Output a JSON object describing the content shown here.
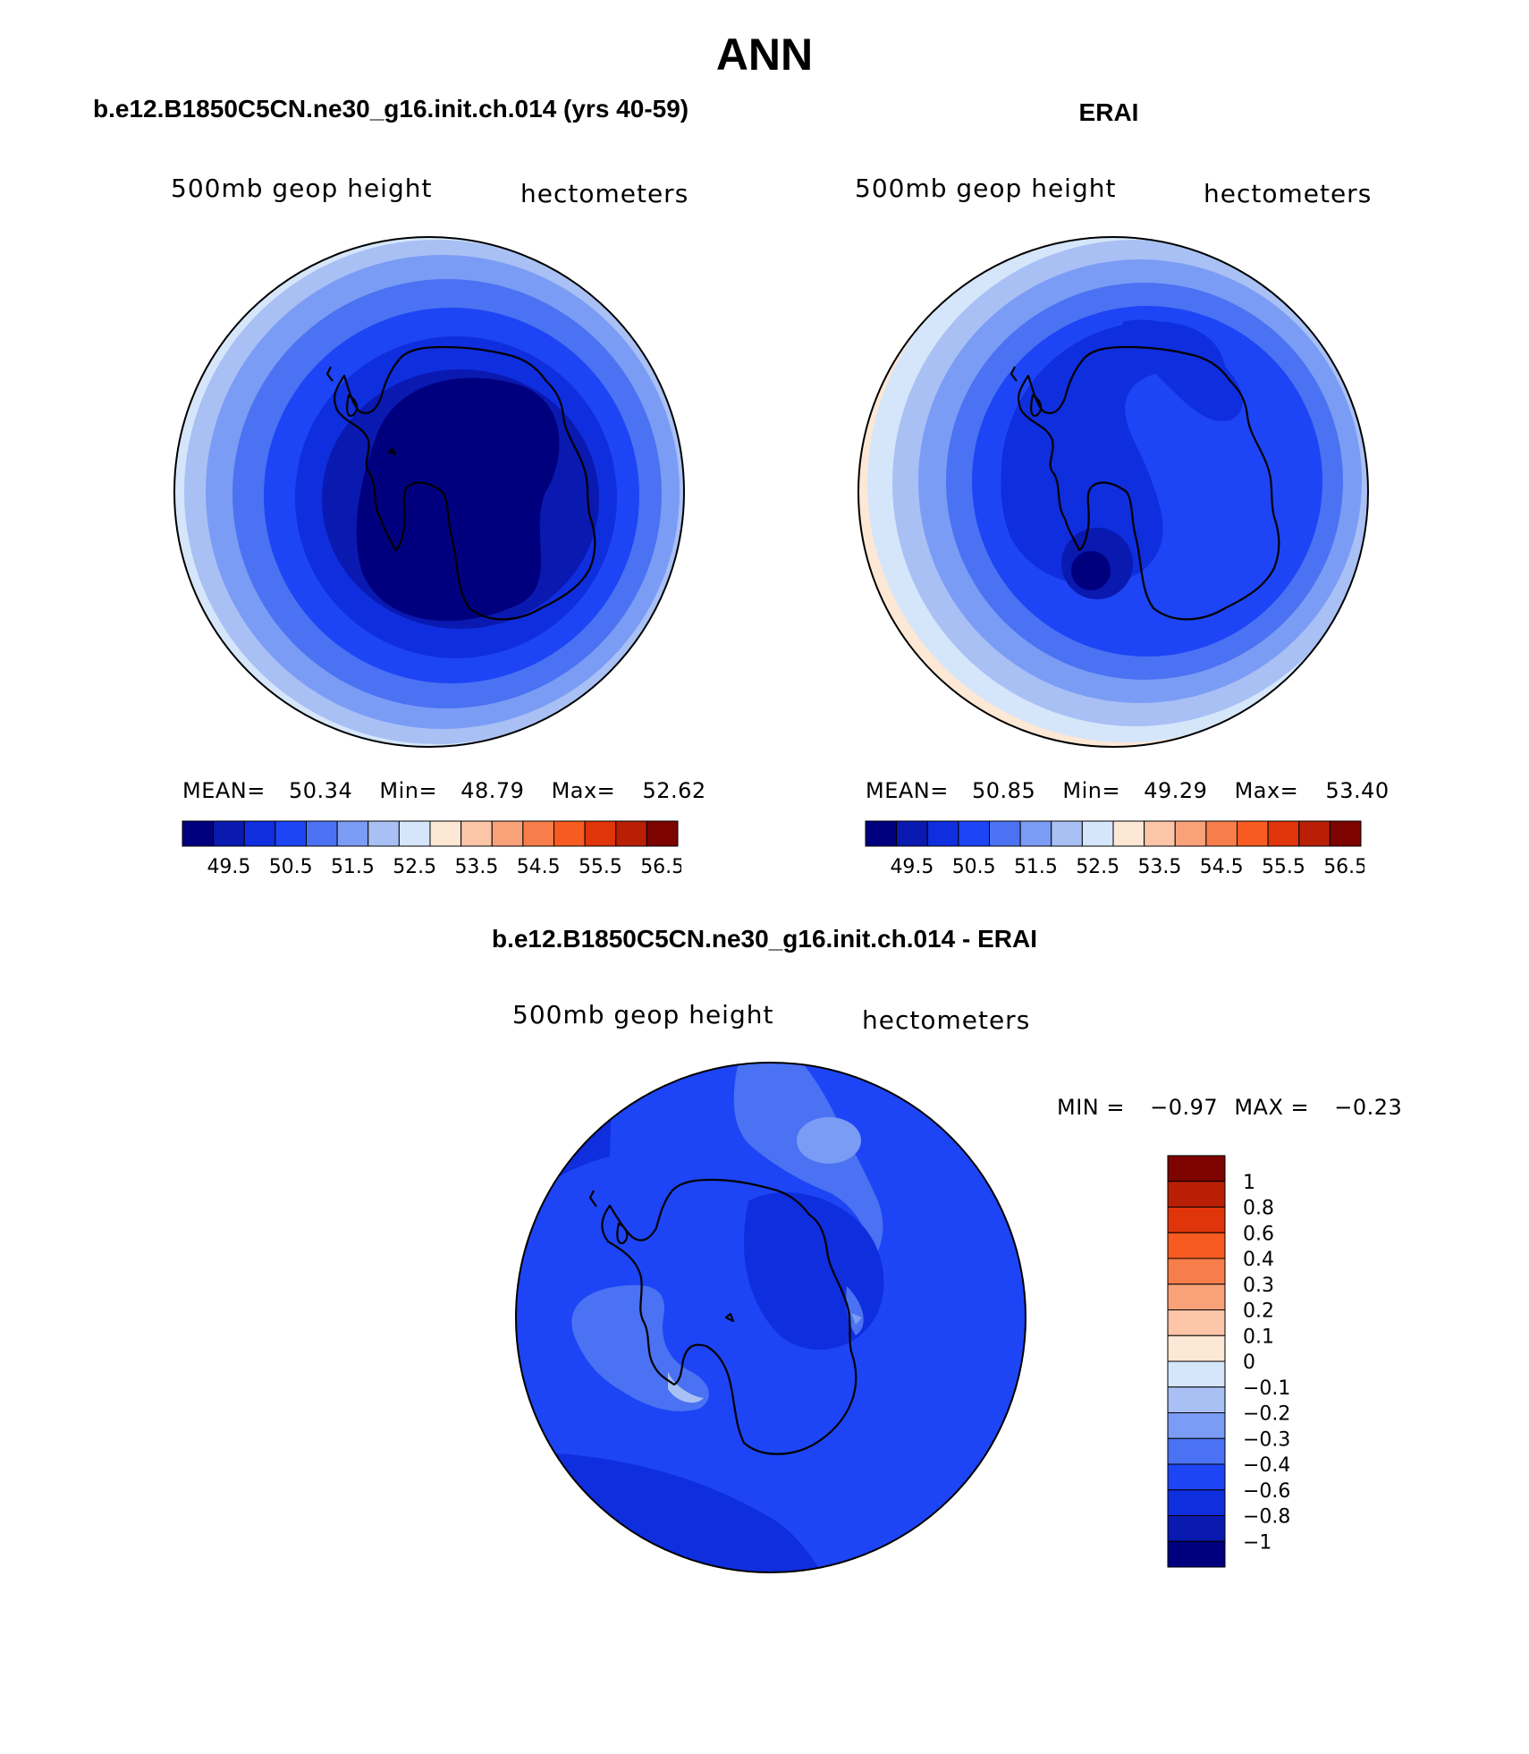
{
  "page_title": "ANN",
  "panels": [
    {
      "title": "b.e12.B1850C5CN.ne30_g16.init.ch.014 (yrs 40-59)",
      "left_label": "500mb geop height",
      "right_label": "hectometers",
      "stats": {
        "mean_label": "MEAN=",
        "mean": "50.34",
        "min_label": "Min=",
        "min": "48.79",
        "max_label": "Max=",
        "max": "52.62"
      },
      "colorbar_ticks": [
        "49.5",
        "50.5",
        "51.5",
        "52.5",
        "53.5",
        "54.5",
        "55.5",
        "56.5"
      ]
    },
    {
      "title": "ERAI",
      "left_label": "500mb geop height",
      "right_label": "hectometers",
      "stats": {
        "mean_label": "MEAN=",
        "mean": "50.85",
        "min_label": "Min=",
        "min": "49.29",
        "max_label": "Max=",
        "max": "53.40"
      },
      "colorbar_ticks": [
        "49.5",
        "50.5",
        "51.5",
        "52.5",
        "53.5",
        "54.5",
        "55.5",
        "56.5"
      ]
    }
  ],
  "diff_panel": {
    "title": "b.e12.B1850C5CN.ne30_g16.init.ch.014 - ERAI",
    "left_label": "500mb geop height",
    "right_label": "hectometers",
    "stats": {
      "min_label": "MIN =",
      "min": "−0.97",
      "max_label": "MAX =",
      "max": "−0.23"
    },
    "colorbar_ticks": [
      "1",
      "0.8",
      "0.6",
      "0.4",
      "0.3",
      "0.2",
      "0.1",
      "0",
      "−0.1",
      "−0.2",
      "−0.3",
      "−0.4",
      "−0.6",
      "−0.8",
      "−1"
    ]
  },
  "colors": {
    "abs_scale": [
      "#00007f",
      "#0a19b0",
      "#0f2ede",
      "#1d45f5",
      "#4a72f2",
      "#7b9cf5",
      "#a9c0f5",
      "#d6e6fa",
      "#fde7d5",
      "#fcc5a8",
      "#f9a179",
      "#f77e4a",
      "#f75b1f",
      "#e0340a",
      "#b81f05",
      "#7d0300"
    ],
    "diff_scale": [
      "#7d0300",
      "#b81f05",
      "#e0340a",
      "#f75b1f",
      "#f77e4a",
      "#f9a179",
      "#fcc5a8",
      "#fde7d5",
      "#d6e6fa",
      "#a9c0f5",
      "#7b9cf5",
      "#4a72f2",
      "#1d45f5",
      "#0f2ede",
      "#0a19b0",
      "#00007f"
    ],
    "coastline": "#000000"
  }
}
